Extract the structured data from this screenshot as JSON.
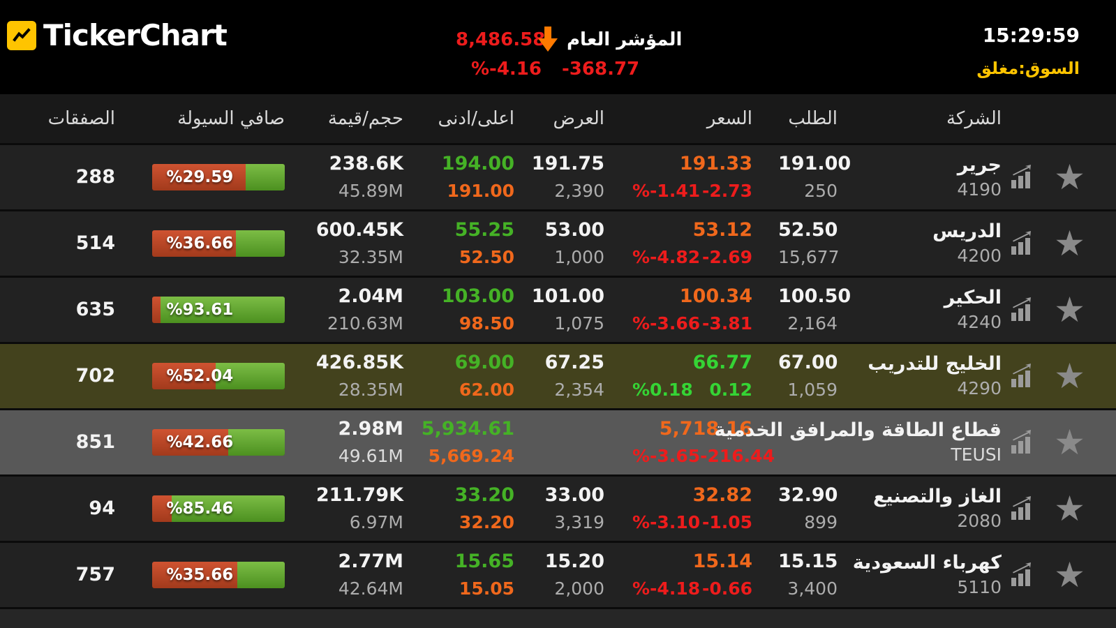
{
  "header": {
    "app_title": "TickerChart",
    "clock": "15:29:59",
    "market_status": "السوق:مغلق",
    "index": {
      "label": "المؤشر العام",
      "value": "8,486.58",
      "change": "-368.77",
      "change_pct": "%-4.16"
    }
  },
  "icons": {
    "star": "★"
  },
  "colors": {
    "red": "#ed1c1c",
    "orange": "#f0681c",
    "green_hi": "#45b226",
    "green_up": "#35d435",
    "yellow": "#ffc400",
    "liq_red": "#a23a1c",
    "liq_red_hi": "#cf5331",
    "liq_green": "#4c9020",
    "liq_green_hi": "#7cbd45",
    "star_gray": "#8a8a8a"
  },
  "table": {
    "columns": {
      "trades": "الصفقات",
      "liquidity": "صافي السيولة",
      "vol_val": "حجم/قيمة",
      "hi_lo": "اعلى/ادنى",
      "ask": "العرض",
      "price": "السعر",
      "bid": "الطلب",
      "company": "الشركة"
    },
    "rows": [
      {
        "name": "جرير",
        "symbol": "4190",
        "bid": "191.00",
        "bid_qty": "250",
        "price": "191.33",
        "change": "-2.73",
        "change_pct": "%-1.41",
        "direction": "down",
        "ask": "191.75",
        "ask_qty": "2,390",
        "high": "194.00",
        "low": "191.00",
        "volume": "238.6K",
        "value": "45.89M",
        "liquidity_pct": "%29.59",
        "liquidity_green": 29.59,
        "trades": "288",
        "row_type": "normal"
      },
      {
        "name": "الدريس",
        "symbol": "4200",
        "bid": "52.50",
        "bid_qty": "15,677",
        "price": "53.12",
        "change": "-2.69",
        "change_pct": "%-4.82",
        "direction": "down",
        "ask": "53.00",
        "ask_qty": "1,000",
        "high": "55.25",
        "low": "52.50",
        "volume": "600.45K",
        "value": "32.35M",
        "liquidity_pct": "%36.66",
        "liquidity_green": 36.66,
        "trades": "514",
        "row_type": "normal"
      },
      {
        "name": "الحكير",
        "symbol": "4240",
        "bid": "100.50",
        "bid_qty": "2,164",
        "price": "100.34",
        "change": "-3.81",
        "change_pct": "%-3.66",
        "direction": "down",
        "ask": "101.00",
        "ask_qty": "1,075",
        "high": "103.00",
        "low": "98.50",
        "volume": "2.04M",
        "value": "210.63M",
        "liquidity_pct": "%93.61",
        "liquidity_green": 93.61,
        "trades": "635",
        "row_type": "normal"
      },
      {
        "name": "الخليج للتدريب",
        "symbol": "4290",
        "bid": "67.00",
        "bid_qty": "1,059",
        "price": "66.77",
        "change": "0.12",
        "change_pct": "%0.18",
        "direction": "up",
        "ask": "67.25",
        "ask_qty": "2,354",
        "high": "69.00",
        "low": "62.00",
        "volume": "426.85K",
        "value": "28.35M",
        "liquidity_pct": "%52.04",
        "liquidity_green": 52.04,
        "trades": "702",
        "row_type": "highlight"
      },
      {
        "name": "قطاع الطاقة والمرافق الخدمية",
        "symbol": "TEUSI",
        "bid": "",
        "bid_qty": "",
        "price": "5,718.16",
        "change": "-216.44",
        "change_pct": "%-3.65",
        "direction": "down",
        "ask": "",
        "ask_qty": "",
        "high": "5,934.61",
        "low": "5,669.24",
        "volume": "2.98M",
        "value": "49.61M",
        "liquidity_pct": "%42.66",
        "liquidity_green": 42.66,
        "trades": "851",
        "row_type": "sector"
      },
      {
        "name": "الغاز والتصنيع",
        "symbol": "2080",
        "bid": "32.90",
        "bid_qty": "899",
        "price": "32.82",
        "change": "-1.05",
        "change_pct": "%-3.10",
        "direction": "down",
        "ask": "33.00",
        "ask_qty": "3,319",
        "high": "33.20",
        "low": "32.20",
        "volume": "211.79K",
        "value": "6.97M",
        "liquidity_pct": "%85.46",
        "liquidity_green": 85.46,
        "trades": "94",
        "row_type": "normal"
      },
      {
        "name": "كهرباء السعودية",
        "symbol": "5110",
        "bid": "15.15",
        "bid_qty": "3,400",
        "price": "15.14",
        "change": "-0.66",
        "change_pct": "%-4.18",
        "direction": "down",
        "ask": "15.20",
        "ask_qty": "2,000",
        "high": "15.65",
        "low": "15.05",
        "volume": "2.77M",
        "value": "42.64M",
        "liquidity_pct": "%35.66",
        "liquidity_green": 35.66,
        "trades": "757",
        "row_type": "normal"
      }
    ]
  }
}
